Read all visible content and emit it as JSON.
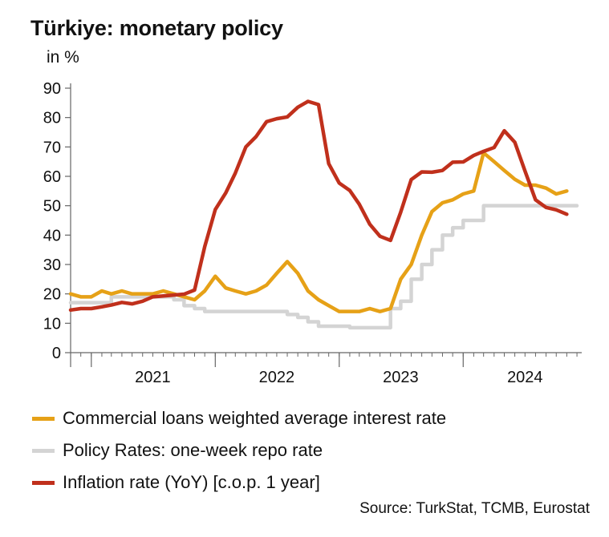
{
  "colors": {
    "commercial": "#E6A117",
    "policy": "#D4D4D4",
    "inflation": "#C0301C",
    "axis": "#666666"
  },
  "source": "Source: TurkStat, TCMB, Eurostat",
  "chart_data": {
    "type": "line",
    "title": "Türkiye: monetary policy",
    "ylabel": "in %",
    "xlabel": "",
    "ylim": [
      0,
      90
    ],
    "xlim": [
      "2020-11-01",
      "2024-12-15"
    ],
    "y_ticks": [
      "0",
      "10",
      "20",
      "30",
      "40",
      "50",
      "60",
      "70",
      "80",
      "90"
    ],
    "x_labels": [
      {
        "label": "2021",
        "at": "2021-07-01"
      },
      {
        "label": "2022",
        "at": "2022-07-01"
      },
      {
        "label": "2023",
        "at": "2023-07-01"
      },
      {
        "label": "2024",
        "at": "2024-07-01"
      }
    ],
    "x_year_boundaries": [
      "2021-01-01",
      "2022-01-01",
      "2023-01-01",
      "2024-01-01"
    ],
    "grid": false,
    "legend_position": "bottom",
    "series": [
      {
        "name": "Commercial loans weighted average interest rate",
        "key": "commercial",
        "points": [
          [
            "2020-11-01",
            20
          ],
          [
            "2020-12-01",
            19
          ],
          [
            "2021-01-01",
            19
          ],
          [
            "2021-02-01",
            21
          ],
          [
            "2021-03-01",
            20
          ],
          [
            "2021-04-01",
            21
          ],
          [
            "2021-05-01",
            20
          ],
          [
            "2021-06-01",
            20
          ],
          [
            "2021-07-01",
            20
          ],
          [
            "2021-08-01",
            21
          ],
          [
            "2021-09-01",
            20
          ],
          [
            "2021-10-01",
            19
          ],
          [
            "2021-11-01",
            18
          ],
          [
            "2021-12-01",
            21
          ],
          [
            "2022-01-01",
            26
          ],
          [
            "2022-02-01",
            22
          ],
          [
            "2022-03-01",
            21
          ],
          [
            "2022-04-01",
            20
          ],
          [
            "2022-05-01",
            21
          ],
          [
            "2022-06-01",
            23
          ],
          [
            "2022-07-01",
            27
          ],
          [
            "2022-08-01",
            31
          ],
          [
            "2022-09-01",
            27
          ],
          [
            "2022-10-01",
            21
          ],
          [
            "2022-11-01",
            18
          ],
          [
            "2022-12-01",
            16
          ],
          [
            "2023-01-01",
            14
          ],
          [
            "2023-02-01",
            14
          ],
          [
            "2023-03-01",
            14
          ],
          [
            "2023-04-01",
            15
          ],
          [
            "2023-05-01",
            14
          ],
          [
            "2023-06-01",
            15
          ],
          [
            "2023-07-01",
            25
          ],
          [
            "2023-08-01",
            30
          ],
          [
            "2023-09-01",
            40
          ],
          [
            "2023-10-01",
            48
          ],
          [
            "2023-11-01",
            51
          ],
          [
            "2023-12-01",
            52
          ],
          [
            "2024-01-01",
            54
          ],
          [
            "2024-02-01",
            55
          ],
          [
            "2024-03-01",
            68
          ],
          [
            "2024-04-01",
            65
          ],
          [
            "2024-05-01",
            62
          ],
          [
            "2024-06-01",
            59
          ],
          [
            "2024-07-01",
            57
          ],
          [
            "2024-08-01",
            57
          ],
          [
            "2024-09-01",
            56
          ],
          [
            "2024-10-01",
            54
          ],
          [
            "2024-11-01",
            55
          ]
        ]
      },
      {
        "name": "Policy Rates: one-week repo rate",
        "key": "policy",
        "points": [
          [
            "2020-11-01",
            17
          ],
          [
            "2021-03-01",
            19
          ],
          [
            "2021-09-01",
            18
          ],
          [
            "2021-10-01",
            16
          ],
          [
            "2021-11-01",
            15
          ],
          [
            "2021-12-01",
            14
          ],
          [
            "2022-08-01",
            13
          ],
          [
            "2022-09-01",
            12
          ],
          [
            "2022-10-01",
            10.5
          ],
          [
            "2022-11-01",
            9
          ],
          [
            "2023-02-01",
            8.5
          ],
          [
            "2023-06-01",
            15
          ],
          [
            "2023-07-01",
            17.5
          ],
          [
            "2023-08-01",
            25
          ],
          [
            "2023-09-01",
            30
          ],
          [
            "2023-10-01",
            35
          ],
          [
            "2023-11-01",
            40
          ],
          [
            "2023-12-01",
            42.5
          ],
          [
            "2024-01-01",
            45
          ],
          [
            "2024-03-01",
            50
          ],
          [
            "2024-12-01",
            50
          ]
        ]
      },
      {
        "name": "Inflation rate (YoY) [c.o.p. 1 year]",
        "key": "inflation",
        "points": [
          [
            "2020-11-01",
            14.5
          ],
          [
            "2020-12-01",
            15
          ],
          [
            "2021-01-01",
            15
          ],
          [
            "2021-02-01",
            15.6
          ],
          [
            "2021-03-01",
            16.2
          ],
          [
            "2021-04-01",
            17.1
          ],
          [
            "2021-05-01",
            16.6
          ],
          [
            "2021-06-01",
            17.5
          ],
          [
            "2021-07-01",
            19
          ],
          [
            "2021-08-01",
            19.3
          ],
          [
            "2021-09-01",
            19.6
          ],
          [
            "2021-10-01",
            19.9
          ],
          [
            "2021-11-01",
            21.3
          ],
          [
            "2021-12-01",
            36.1
          ],
          [
            "2022-01-01",
            48.7
          ],
          [
            "2022-02-01",
            54.4
          ],
          [
            "2022-03-01",
            61.1
          ],
          [
            "2022-04-01",
            70
          ],
          [
            "2022-05-01",
            73.5
          ],
          [
            "2022-06-01",
            78.6
          ],
          [
            "2022-07-01",
            79.6
          ],
          [
            "2022-08-01",
            80.2
          ],
          [
            "2022-09-01",
            83.5
          ],
          [
            "2022-10-01",
            85.5
          ],
          [
            "2022-11-01",
            84.4
          ],
          [
            "2022-12-01",
            64.3
          ],
          [
            "2023-01-01",
            57.7
          ],
          [
            "2023-02-01",
            55.2
          ],
          [
            "2023-03-01",
            50.5
          ],
          [
            "2023-04-01",
            43.7
          ],
          [
            "2023-05-01",
            39.6
          ],
          [
            "2023-06-01",
            38.2
          ],
          [
            "2023-07-01",
            47.8
          ],
          [
            "2023-08-01",
            58.9
          ],
          [
            "2023-09-01",
            61.5
          ],
          [
            "2023-10-01",
            61.4
          ],
          [
            "2023-11-01",
            62
          ],
          [
            "2023-12-01",
            64.8
          ],
          [
            "2024-01-01",
            64.9
          ],
          [
            "2024-02-01",
            67.1
          ],
          [
            "2024-03-01",
            68.5
          ],
          [
            "2024-04-01",
            69.8
          ],
          [
            "2024-05-01",
            75.5
          ],
          [
            "2024-06-01",
            71.6
          ],
          [
            "2024-07-01",
            61.8
          ],
          [
            "2024-08-01",
            52
          ],
          [
            "2024-09-01",
            49.4
          ],
          [
            "2024-10-01",
            48.6
          ],
          [
            "2024-11-01",
            47.1
          ]
        ]
      }
    ]
  }
}
